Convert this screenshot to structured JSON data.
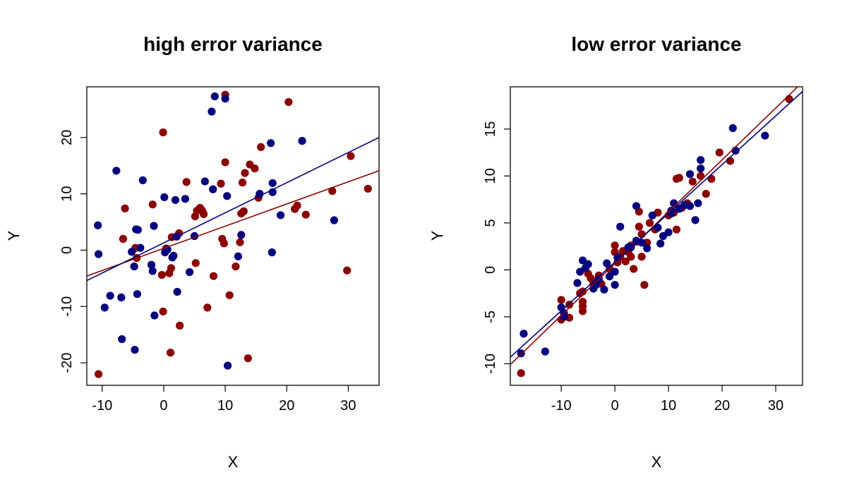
{
  "colors": {
    "series_a": "#8B0000",
    "series_b": "#00007F",
    "axis": "#000000",
    "background": "#FFFFFF"
  },
  "chart_data": [
    {
      "type": "scatter",
      "title": "high error variance",
      "xlabel": "X",
      "ylabel": "Y",
      "xlim": [
        -12.5,
        35
      ],
      "ylim": [
        -24,
        29
      ],
      "xticks": [
        -10,
        0,
        10,
        20,
        30
      ],
      "yticks": [
        -20,
        -10,
        0,
        10,
        20
      ],
      "xtick_labels": [
        "-10",
        "0",
        "10",
        "20",
        "30"
      ],
      "ytick_labels": [
        "-20",
        "-10",
        "0",
        "10",
        "20"
      ],
      "grid": false,
      "series": [
        {
          "color": "#8B0000",
          "points": [
            [
              -10.6,
              -22.0
            ],
            [
              -6.3,
              7.4
            ],
            [
              -6.6,
              2.0
            ],
            [
              -4.6,
              0.4
            ],
            [
              -4.4,
              -1.4
            ],
            [
              -1.8,
              8.1
            ],
            [
              -0.3,
              -4.4
            ],
            [
              -0.1,
              20.9
            ],
            [
              -0.1,
              -10.9
            ],
            [
              0.4,
              0.3
            ],
            [
              0.9,
              -4.1
            ],
            [
              1.1,
              -18.2
            ],
            [
              1.2,
              -3.2
            ],
            [
              1.3,
              2.3
            ],
            [
              2.5,
              3.0
            ],
            [
              2.6,
              -13.4
            ],
            [
              3.7,
              12.1
            ],
            [
              5.1,
              6.0
            ],
            [
              5.2,
              -2.3
            ],
            [
              5.4,
              7.0
            ],
            [
              5.9,
              7.5
            ],
            [
              6.1,
              7.2
            ],
            [
              6.3,
              6.9
            ],
            [
              6.5,
              6.4
            ],
            [
              7.1,
              -10.2
            ],
            [
              8.1,
              -4.6
            ],
            [
              9.3,
              11.8
            ],
            [
              9.5,
              2.0
            ],
            [
              9.8,
              1.2
            ],
            [
              10.0,
              27.6
            ],
            [
              10.0,
              15.6
            ],
            [
              10.7,
              -8.0
            ],
            [
              11.7,
              -2.9
            ],
            [
              12.4,
              1.4
            ],
            [
              12.6,
              6.5
            ],
            [
              12.8,
              12.0
            ],
            [
              13.0,
              6.9
            ],
            [
              13.2,
              13.7
            ],
            [
              13.7,
              -19.2
            ],
            [
              14.0,
              15.2
            ],
            [
              14.8,
              14.5
            ],
            [
              15.4,
              9.3
            ],
            [
              15.8,
              18.3
            ],
            [
              20.3,
              26.3
            ],
            [
              21.3,
              7.3
            ],
            [
              21.7,
              7.9
            ],
            [
              23.1,
              6.3
            ],
            [
              27.4,
              10.5
            ],
            [
              29.8,
              -3.6
            ],
            [
              30.4,
              16.7
            ],
            [
              33.2,
              10.9
            ]
          ],
          "fit_line": [
            [
              -12.5,
              -4.6
            ],
            [
              35,
              14.1
            ]
          ]
        },
        {
          "color": "#00007F",
          "points": [
            [
              -10.7,
              4.4
            ],
            [
              -10.6,
              -0.7
            ],
            [
              -9.6,
              -10.2
            ],
            [
              -8.7,
              -8.1
            ],
            [
              -7.7,
              14.1
            ],
            [
              -6.9,
              -8.4
            ],
            [
              -6.8,
              -15.8
            ],
            [
              -5.2,
              -0.3
            ],
            [
              -4.8,
              -2.9
            ],
            [
              -4.7,
              -17.7
            ],
            [
              -4.5,
              3.7
            ],
            [
              -4.3,
              -7.8
            ],
            [
              -4.2,
              3.6
            ],
            [
              -3.8,
              0.4
            ],
            [
              -3.4,
              12.4
            ],
            [
              -2.0,
              -2.6
            ],
            [
              -1.8,
              -3.7
            ],
            [
              -1.6,
              4.3
            ],
            [
              -1.5,
              -11.6
            ],
            [
              0.1,
              9.4
            ],
            [
              0.2,
              -0.4
            ],
            [
              0.6,
              0.1
            ],
            [
              1.4,
              -1.3
            ],
            [
              1.6,
              -1.0
            ],
            [
              1.9,
              8.9
            ],
            [
              2.1,
              2.4
            ],
            [
              2.2,
              -7.4
            ],
            [
              3.5,
              9.1
            ],
            [
              4.2,
              -3.9
            ],
            [
              5.0,
              2.5
            ],
            [
              6.7,
              12.2
            ],
            [
              7.8,
              24.6
            ],
            [
              8.0,
              10.8
            ],
            [
              8.3,
              27.3
            ],
            [
              10.0,
              26.9
            ],
            [
              10.3,
              9.6
            ],
            [
              10.4,
              -20.5
            ],
            [
              12.1,
              -1.1
            ],
            [
              12.6,
              2.7
            ],
            [
              15.6,
              10.0
            ],
            [
              17.4,
              19.0
            ],
            [
              17.6,
              -0.4
            ],
            [
              17.7,
              10.3
            ],
            [
              17.7,
              11.9
            ],
            [
              19.0,
              6.2
            ],
            [
              22.5,
              19.4
            ],
            [
              27.7,
              5.3
            ]
          ],
          "fit_line": [
            [
              -12.5,
              -5.4
            ],
            [
              35,
              20.0
            ]
          ]
        }
      ]
    },
    {
      "type": "scatter",
      "title": "low error variance",
      "xlabel": "X",
      "ylabel": "Y",
      "xlim": [
        -19.5,
        35
      ],
      "ylim": [
        -12.3,
        19.5
      ],
      "xticks": [
        -10,
        0,
        10,
        20,
        30
      ],
      "yticks": [
        -10,
        -5,
        0,
        5,
        10,
        15
      ],
      "xtick_labels": [
        "-10",
        "0",
        "10",
        "20",
        "30"
      ],
      "ytick_labels": [
        "-10",
        "-5",
        "0",
        "5",
        "10",
        "15"
      ],
      "grid": false,
      "series": [
        {
          "color": "#8B0000",
          "points": [
            [
              -17.5,
              -11.0
            ],
            [
              -10.0,
              -5.3
            ],
            [
              -10.0,
              -3.2
            ],
            [
              -8.5,
              -5.1
            ],
            [
              -8.5,
              -3.7
            ],
            [
              -6.5,
              -2.5
            ],
            [
              -6.0,
              -4.4
            ],
            [
              -6.0,
              -3.9
            ],
            [
              -6.0,
              -3.4
            ],
            [
              -6.0,
              -2.3
            ],
            [
              -5.0,
              -0.4
            ],
            [
              -4.5,
              -0.9
            ],
            [
              -4.0,
              -1.5
            ],
            [
              -3.5,
              -1.2
            ],
            [
              -3.0,
              -0.6
            ],
            [
              -2.5,
              -1.5
            ],
            [
              -1.0,
              0.1
            ],
            [
              0.0,
              2.6
            ],
            [
              0.0,
              1.9
            ],
            [
              0.5,
              0.8
            ],
            [
              1.0,
              1.4
            ],
            [
              1.5,
              2.0
            ],
            [
              2.0,
              0.9
            ],
            [
              2.5,
              1.9
            ],
            [
              3.0,
              2.6
            ],
            [
              3.0,
              1.4
            ],
            [
              3.5,
              0.1
            ],
            [
              4.0,
              3.0
            ],
            [
              4.5,
              4.6
            ],
            [
              4.5,
              6.2
            ],
            [
              5.0,
              1.4
            ],
            [
              5.0,
              3.8
            ],
            [
              5.5,
              -1.6
            ],
            [
              6.0,
              2.9
            ],
            [
              6.5,
              5.0
            ],
            [
              7.5,
              4.3
            ],
            [
              8.0,
              6.1
            ],
            [
              10.0,
              5.8
            ],
            [
              11.0,
              6.1
            ],
            [
              11.5,
              4.3
            ],
            [
              11.5,
              9.7
            ],
            [
              12.0,
              9.8
            ],
            [
              12.5,
              6.6
            ],
            [
              13.5,
              7.1
            ],
            [
              14.5,
              9.4
            ],
            [
              16.0,
              10.0
            ],
            [
              17.0,
              8.1
            ],
            [
              18.0,
              9.7
            ],
            [
              19.5,
              12.5
            ],
            [
              21.5,
              11.6
            ],
            [
              32.5,
              18.2
            ]
          ],
          "fit_line": [
            [
              -19.5,
              -10.1
            ],
            [
              35,
              20.0
            ]
          ]
        },
        {
          "color": "#00007F",
          "points": [
            [
              -17.0,
              -6.8
            ],
            [
              -17.5,
              -8.9
            ],
            [
              -13.0,
              -8.7
            ],
            [
              -10.0,
              -4.0
            ],
            [
              -9.5,
              -4.6
            ],
            [
              -9.5,
              -5.0
            ],
            [
              -7.0,
              -1.4
            ],
            [
              -6.5,
              -0.2
            ],
            [
              -6.0,
              1.0
            ],
            [
              -5.5,
              0.2
            ],
            [
              -5.0,
              0.6
            ],
            [
              -4.0,
              -2.0
            ],
            [
              -3.5,
              -1.6
            ],
            [
              -3.0,
              -1.0
            ],
            [
              -2.0,
              -2.1
            ],
            [
              -1.5,
              0.7
            ],
            [
              -1.0,
              -0.7
            ],
            [
              0.0,
              -1.6
            ],
            [
              0.0,
              -0.2
            ],
            [
              0.5,
              1.3
            ],
            [
              1.0,
              4.6
            ],
            [
              2.5,
              2.4
            ],
            [
              3.0,
              2.4
            ],
            [
              4.0,
              3.1
            ],
            [
              5.0,
              2.9
            ],
            [
              6.0,
              2.3
            ],
            [
              7.0,
              5.8
            ],
            [
              8.0,
              4.5
            ],
            [
              8.5,
              2.8
            ],
            [
              9.0,
              3.6
            ],
            [
              10.0,
              4.0
            ],
            [
              10.5,
              6.0
            ],
            [
              10.5,
              6.3
            ],
            [
              11.0,
              7.1
            ],
            [
              12.0,
              6.5
            ],
            [
              13.0,
              6.9
            ],
            [
              14.0,
              6.8
            ],
            [
              14.0,
              10.2
            ],
            [
              15.0,
              5.3
            ],
            [
              15.5,
              7.1
            ],
            [
              16.0,
              10.8
            ],
            [
              16.0,
              11.7
            ],
            [
              22.0,
              15.1
            ],
            [
              22.5,
              12.7
            ],
            [
              28.0,
              14.3
            ],
            [
              4.0,
              6.8
            ]
          ],
          "fit_line": [
            [
              -19.5,
              -9.3
            ],
            [
              35,
              19.0
            ]
          ]
        }
      ]
    }
  ]
}
